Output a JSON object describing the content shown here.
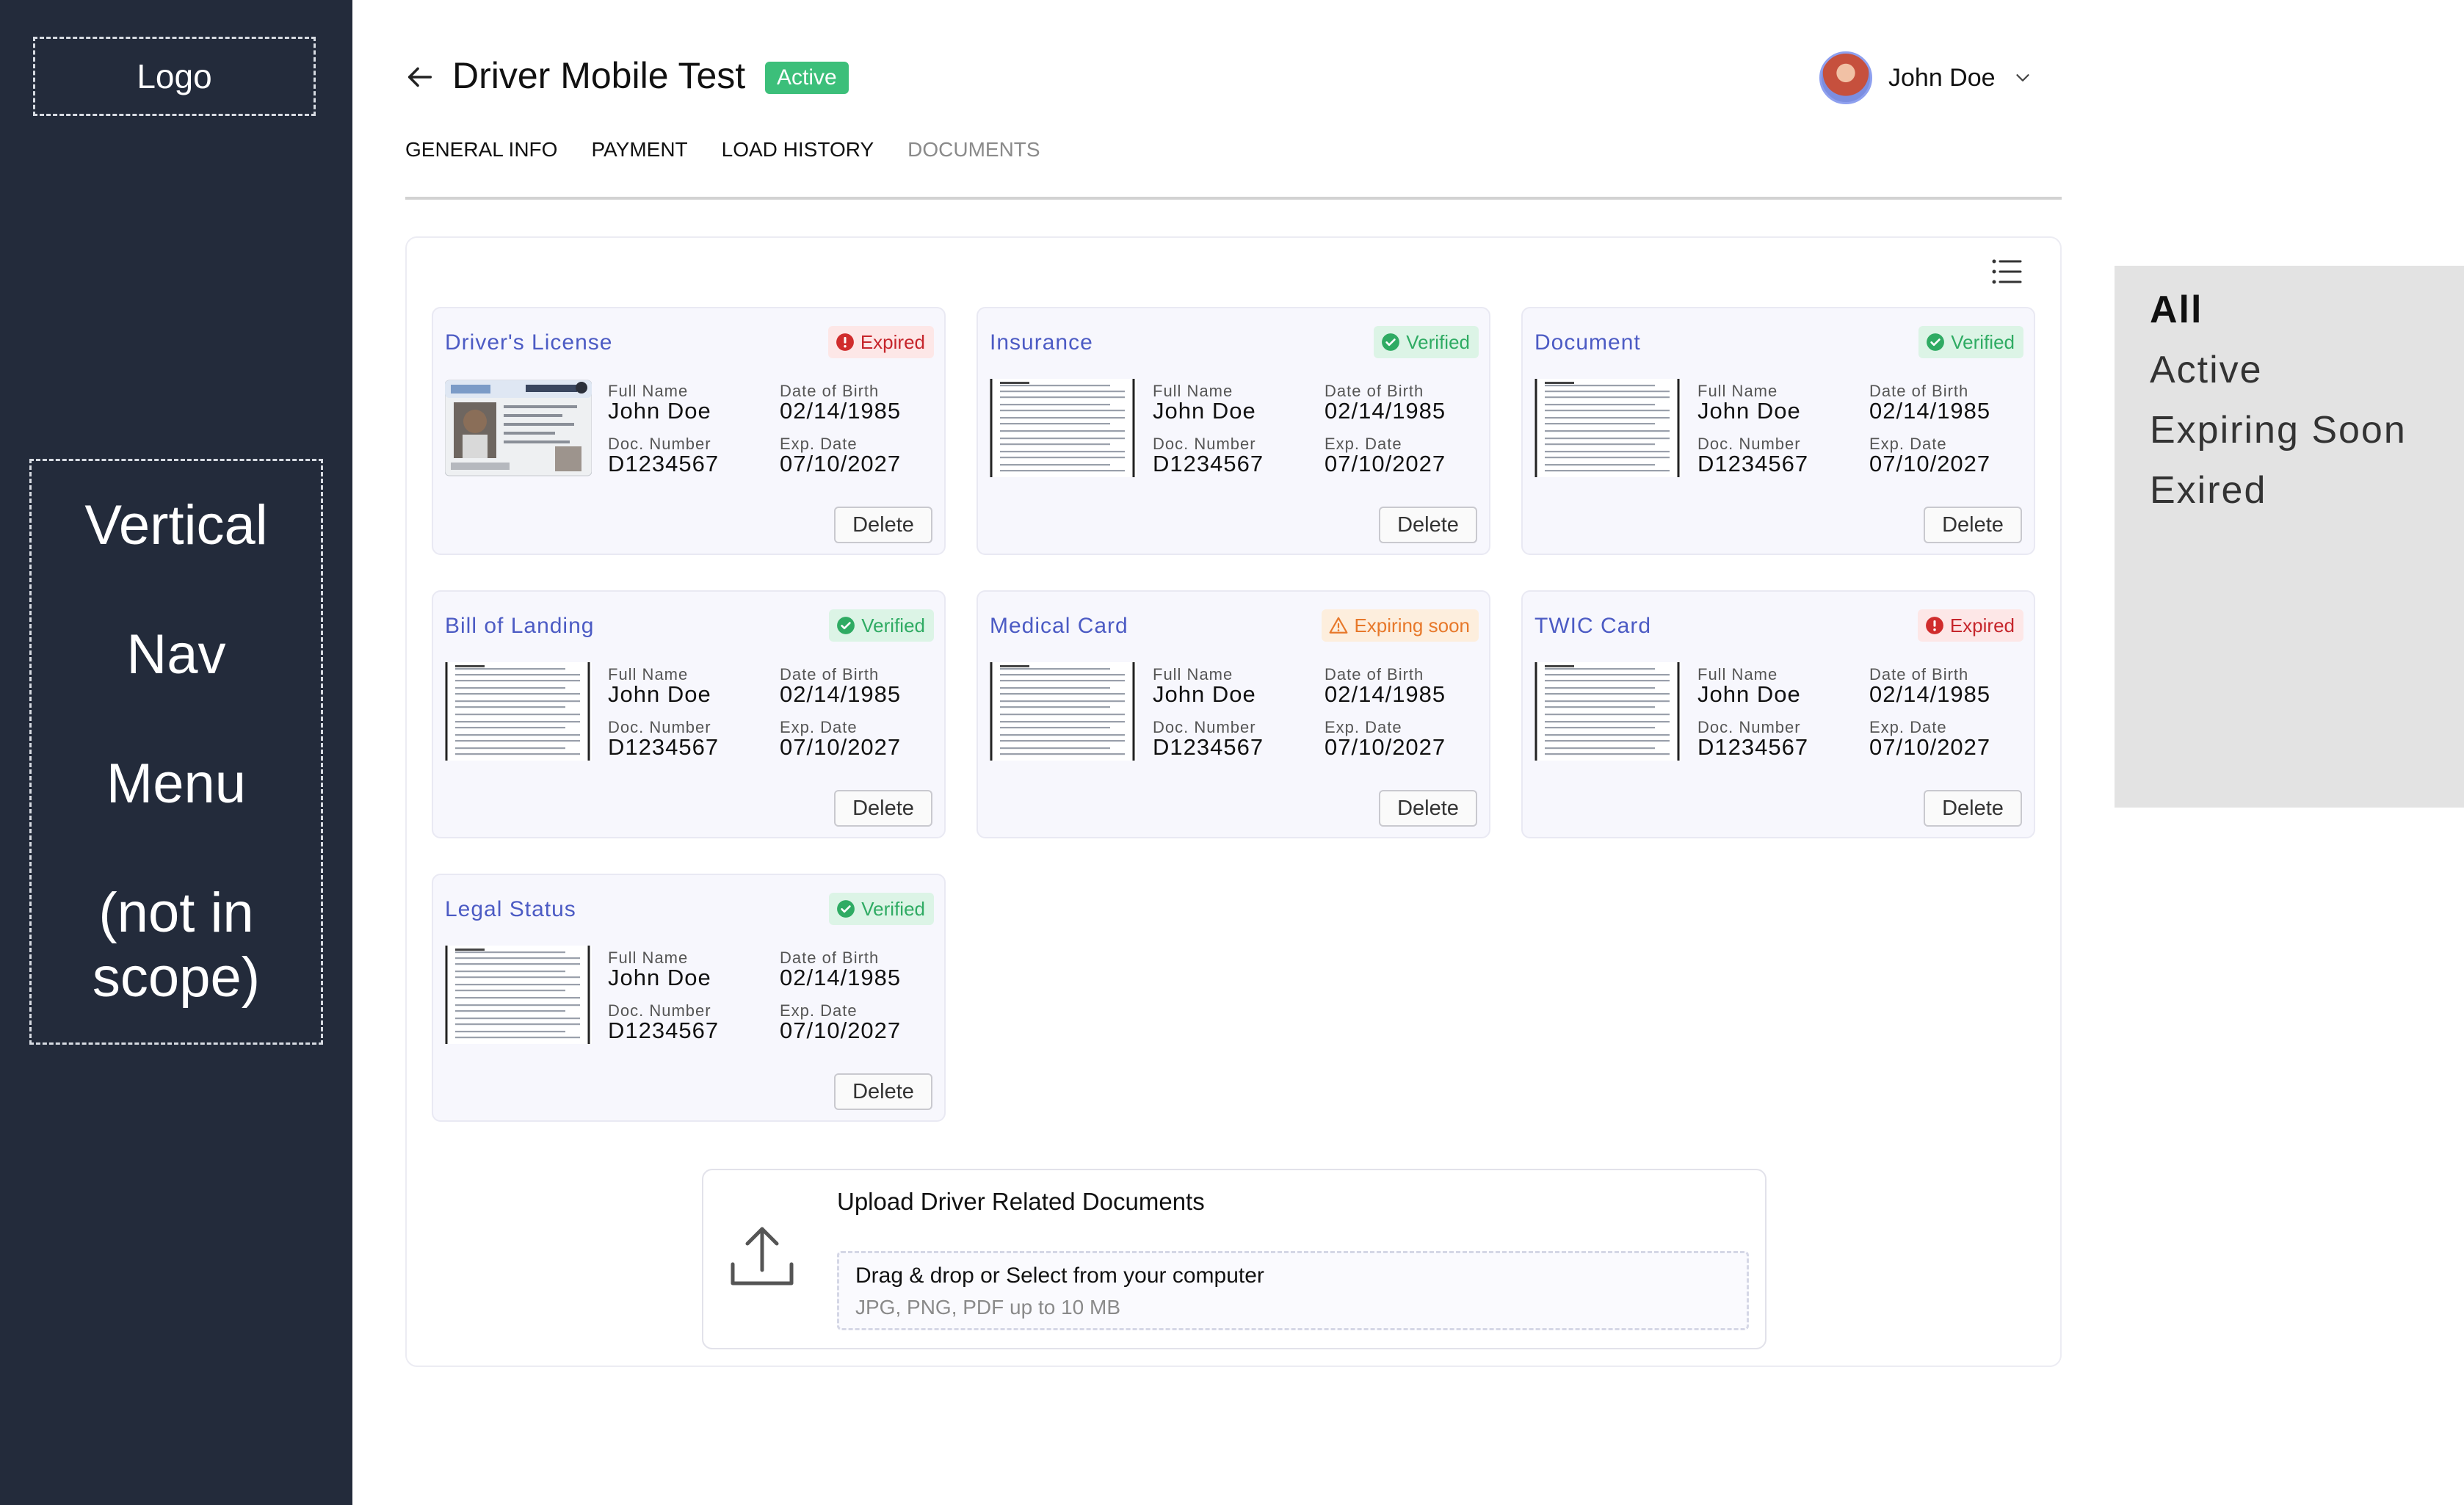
{
  "sidebar": {
    "logo_label": "Logo",
    "nav_placeholder_lines": [
      "Vertical",
      "Nav",
      "Menu",
      "(not in",
      "scope)"
    ]
  },
  "header": {
    "title": "Driver Mobile Test",
    "status": "Active",
    "status_color": "#3cbf7a",
    "user_name": "John Doe",
    "icons": [
      "arrow-left-icon",
      "chevron-down-icon",
      "list-view-icon"
    ]
  },
  "tabs": [
    {
      "label": "GENERAL INFO",
      "selected": false
    },
    {
      "label": "PAYMENT",
      "selected": false
    },
    {
      "label": "LOAD HISTORY",
      "selected": false
    },
    {
      "label": "DOCUMENTS",
      "selected": true
    }
  ],
  "field_labels": {
    "full_name": "Full Name",
    "dob": "Date of Birth",
    "doc_number": "Doc. Number",
    "exp_date": "Exp. Date",
    "delete": "Delete"
  },
  "documents": [
    {
      "title": "Driver's License",
      "status": "Expired",
      "status_type": "expired",
      "thumbnail": "license",
      "full_name": "John Doe",
      "dob": "02/14/1985",
      "doc_number": "D1234567",
      "exp_date": "07/10/2027"
    },
    {
      "title": "Insurance",
      "status": "Verified",
      "status_type": "verified",
      "thumbnail": "page",
      "full_name": "John Doe",
      "dob": "02/14/1985",
      "doc_number": "D1234567",
      "exp_date": "07/10/2027"
    },
    {
      "title": "Document",
      "status": "Verified",
      "status_type": "verified",
      "thumbnail": "page",
      "full_name": "John Doe",
      "dob": "02/14/1985",
      "doc_number": "D1234567",
      "exp_date": "07/10/2027"
    },
    {
      "title": "Bill of Landing",
      "status": "Verified",
      "status_type": "verified",
      "thumbnail": "page",
      "full_name": "John Doe",
      "dob": "02/14/1985",
      "doc_number": "D1234567",
      "exp_date": "07/10/2027"
    },
    {
      "title": "Medical Card",
      "status": "Expiring soon",
      "status_type": "expiring",
      "thumbnail": "page",
      "full_name": "John Doe",
      "dob": "02/14/1985",
      "doc_number": "D1234567",
      "exp_date": "07/10/2027"
    },
    {
      "title": "TWIC Card",
      "status": "Expired",
      "status_type": "expired",
      "thumbnail": "page",
      "full_name": "John Doe",
      "dob": "02/14/1985",
      "doc_number": "D1234567",
      "exp_date": "07/10/2027"
    },
    {
      "title": "Legal Status",
      "status": "Verified",
      "status_type": "verified",
      "thumbnail": "page",
      "full_name": "John Doe",
      "dob": "02/14/1985",
      "doc_number": "D1234567",
      "exp_date": "07/10/2027"
    }
  ],
  "status_colors": {
    "expired": "#c6262c",
    "verified": "#2fab63",
    "expiring": "#e7782a"
  },
  "upload": {
    "title": "Upload Driver Related Documents",
    "instruction": "Drag & drop or Select from your computer",
    "hint": "JPG, PNG, PDF up to 10 MB",
    "icon": "upload-icon"
  },
  "filters": [
    {
      "label": "All",
      "selected": true
    },
    {
      "label": "Active",
      "selected": false
    },
    {
      "label": "Expiring Soon",
      "selected": false
    },
    {
      "label": "Exired",
      "selected": false
    }
  ]
}
